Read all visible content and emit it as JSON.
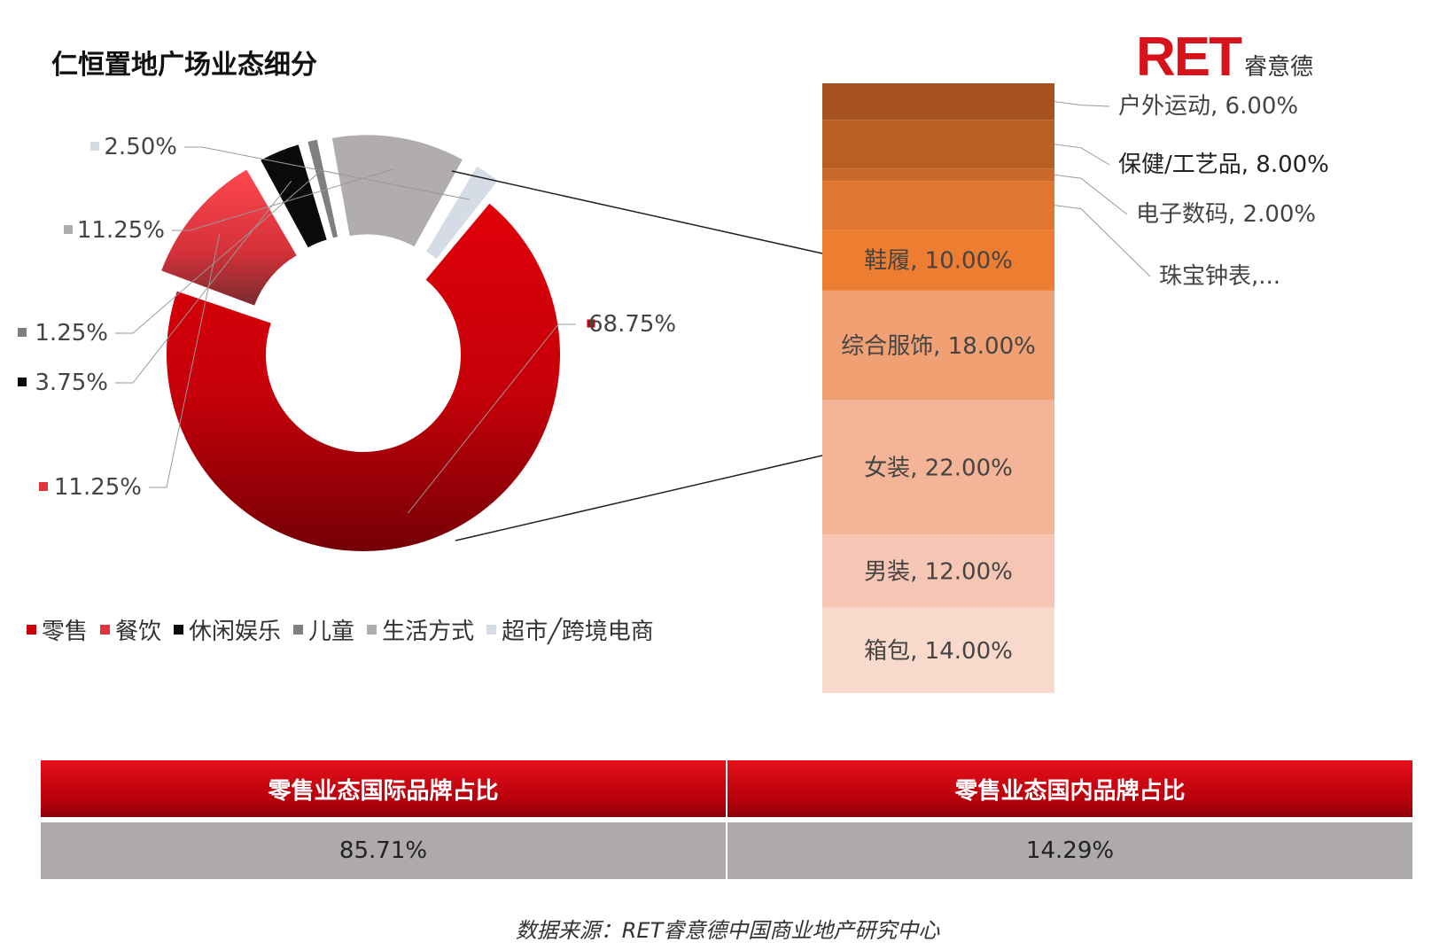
{
  "header": {
    "title": "仁恒置地广场业态细分",
    "brand_mark": "RET",
    "brand_cn": "睿意德"
  },
  "chart_data": [
    {
      "type": "pie",
      "variant": "donut",
      "categories": [
        "零售",
        "餐饮",
        "休闲娱乐",
        "儿童",
        "生活方式",
        "超市/跨境电商"
      ],
      "values": [
        68.75,
        11.25,
        3.75,
        1.25,
        11.25,
        2.5
      ],
      "data_labels": [
        "68.75%",
        "11.25%",
        "3.75%",
        "1.25%",
        "11.25%",
        "2.50%"
      ],
      "colors": [
        "#c8000b",
        "#e2323a",
        "#0a0a0a",
        "#7f7f7f",
        "#b1adad",
        "#d6dce5"
      ],
      "legend": {
        "position": "bottom-left",
        "labels": [
          "零售",
          "餐饮",
          "休闲娱乐",
          "儿童",
          "生活方式",
          "超市╱跨境电商"
        ]
      }
    },
    {
      "type": "bar",
      "variant": "stacked-100",
      "categories": [
        "户外运动",
        "保健/工艺品",
        "电子数码",
        "珠宝钟表",
        "鞋履",
        "综合服饰",
        "女装",
        "男装",
        "箱包"
      ],
      "values": [
        6.0,
        8.0,
        2.0,
        8.0,
        10.0,
        18.0,
        22.0,
        12.0,
        14.0
      ],
      "labels": [
        "户外运动, 6.00%",
        "保健/工艺品, 8.00%",
        "电子数码, 2.00%",
        "珠宝钟表,...",
        "鞋履, 10.00%",
        "综合服饰, 18.00%",
        "女装, 22.00%",
        "男装, 12.00%",
        "箱包, 14.00%"
      ],
      "colors": [
        "#a65220",
        "#ba5f24",
        "#c8682a",
        "#e07630",
        "#ed7d31",
        "#f0a073",
        "#f3b497",
        "#f5c6b3",
        "#f8d9cc"
      ]
    }
  ],
  "table": {
    "headers": [
      "零售业态国际品牌占比",
      "零售业态国内品牌占比"
    ],
    "values": [
      "85.71%",
      "14.29%"
    ]
  },
  "footer": {
    "source": "数据来源：RET睿意德中国商业地产研究中心"
  }
}
